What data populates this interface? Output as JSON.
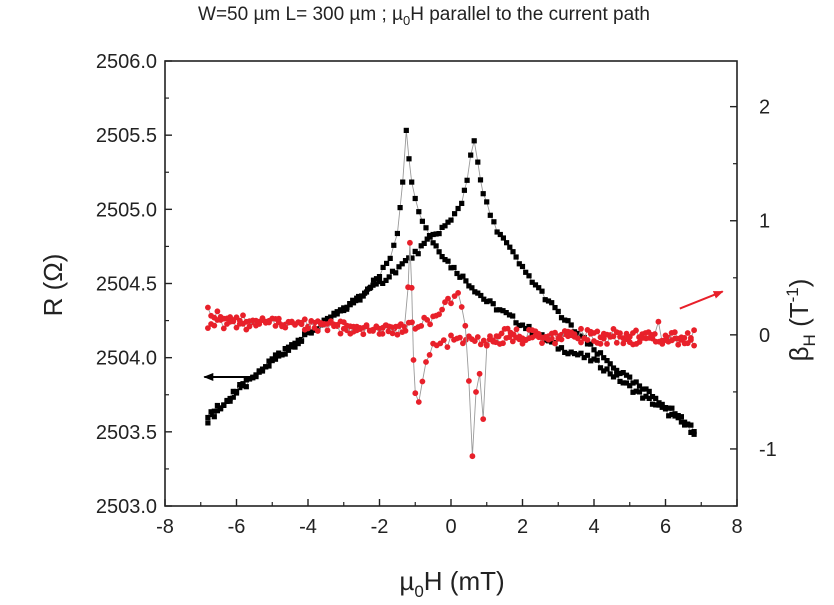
{
  "chart_data": {
    "type": "scatter",
    "title": "W=50 µm L= 300 µm ; µ₀H parallel to the current path",
    "title_parts": {
      "pre": "W=50 µm L= 300 µm ; µ",
      "sub": "0",
      "post": "H parallel to the current path"
    },
    "xlabel": {
      "pre": "µ",
      "sub": "0",
      "post": "H (mT)"
    },
    "ylabel_left": "R (Ω)",
    "ylabel_right": {
      "base": "β",
      "sub": "H",
      "unit_pre": " (T",
      "unit_sup": "-1",
      "unit_post": ")"
    },
    "xlim": [
      -8,
      8
    ],
    "ylim_left": [
      2503.0,
      2506.0
    ],
    "ylim_right": [
      -1.5,
      2.4
    ],
    "x_ticks": [
      "-8",
      "-6",
      "-4",
      "-2",
      "0",
      "2",
      "4",
      "6",
      "8"
    ],
    "y_left_ticks": [
      "2503.0",
      "2503.5",
      "2504.0",
      "2504.5",
      "2505.0",
      "2505.5",
      "2506.0"
    ],
    "y_right_ticks": [
      "-1",
      "0",
      "1",
      "2"
    ],
    "grid": false,
    "colors": {
      "R": "#000000",
      "beta": "#e8202a",
      "connector": "#9a9a9a"
    },
    "series": [
      {
        "key": "R",
        "axis": "left",
        "marker": "square",
        "sweeps": [
          [
            [
              -6.8,
              2503.58
            ],
            [
              -6.0,
              2503.76
            ],
            [
              -5.0,
              2503.97
            ],
            [
              -4.0,
              2504.16
            ],
            [
              -3.0,
              2504.32
            ],
            [
              -2.5,
              2504.43
            ],
            [
              -2.0,
              2504.55
            ],
            [
              -1.7,
              2504.68
            ],
            [
              -1.5,
              2504.85
            ],
            [
              -1.35,
              2505.2
            ],
            [
              -1.25,
              2505.52
            ],
            [
              -1.1,
              2505.2
            ],
            [
              -0.9,
              2504.98
            ],
            [
              -0.5,
              2504.78
            ],
            [
              0.0,
              2504.62
            ],
            [
              0.5,
              2504.5
            ],
            [
              1.0,
              2504.38
            ],
            [
              2.0,
              2504.22
            ],
            [
              3.0,
              2504.07
            ],
            [
              4.0,
              2503.98
            ],
            [
              5.0,
              2503.8
            ],
            [
              6.0,
              2503.64
            ],
            [
              6.8,
              2503.5
            ]
          ],
          [
            [
              -6.8,
              2503.6
            ],
            [
              -6.0,
              2503.78
            ],
            [
              -5.0,
              2503.99
            ],
            [
              -4.0,
              2504.16
            ],
            [
              -3.0,
              2504.33
            ],
            [
              -2.0,
              2504.5
            ],
            [
              -1.0,
              2504.7
            ],
            [
              -0.5,
              2504.82
            ],
            [
              0.0,
              2504.92
            ],
            [
              0.3,
              2505.05
            ],
            [
              0.45,
              2505.2
            ],
            [
              0.55,
              2505.38
            ],
            [
              0.65,
              2505.47
            ],
            [
              0.75,
              2505.3
            ],
            [
              0.9,
              2505.1
            ],
            [
              1.2,
              2504.9
            ],
            [
              2.0,
              2504.6
            ],
            [
              3.0,
              2504.3
            ],
            [
              4.0,
              2504.05
            ],
            [
              5.0,
              2503.85
            ],
            [
              6.0,
              2503.68
            ],
            [
              6.8,
              2503.52
            ]
          ]
        ]
      },
      {
        "key": "beta",
        "axis": "right",
        "marker": "circle",
        "sweeps": [
          [
            [
              -6.8,
              0.2
            ],
            [
              -6.0,
              0.15
            ],
            [
              -5.0,
              0.12
            ],
            [
              -4.0,
              0.1
            ],
            [
              -3.0,
              0.08
            ],
            [
              -2.0,
              0.05
            ],
            [
              -1.5,
              0.02
            ],
            [
              -1.3,
              0.1
            ],
            [
              -1.2,
              0.45
            ],
            [
              -1.15,
              0.85
            ],
            [
              -1.1,
              0.4
            ],
            [
              -1.05,
              -0.2
            ],
            [
              -1.0,
              -0.55
            ],
            [
              -0.9,
              -0.6
            ],
            [
              -0.7,
              -0.25
            ],
            [
              -0.5,
              -0.1
            ],
            [
              -0.2,
              -0.08
            ],
            [
              0.0,
              -0.05
            ],
            [
              0.5,
              -0.05
            ],
            [
              1.0,
              -0.05
            ],
            [
              2.0,
              -0.05
            ],
            [
              3.0,
              -0.04
            ],
            [
              4.0,
              -0.03
            ],
            [
              5.0,
              -0.05
            ],
            [
              6.0,
              -0.05
            ],
            [
              6.8,
              -0.05
            ]
          ],
          [
            [
              -6.8,
              0.1
            ],
            [
              -6.0,
              0.08
            ],
            [
              -5.0,
              0.1
            ],
            [
              -4.0,
              0.08
            ],
            [
              -3.0,
              0.05
            ],
            [
              -2.0,
              0.05
            ],
            [
              -1.0,
              0.07
            ],
            [
              -0.5,
              0.15
            ],
            [
              0.0,
              0.3
            ],
            [
              0.2,
              0.35
            ],
            [
              0.4,
              0.1
            ],
            [
              0.5,
              -0.4
            ],
            [
              0.6,
              -1.1
            ],
            [
              0.7,
              -0.5
            ],
            [
              0.8,
              -0.3
            ],
            [
              0.9,
              -0.7
            ],
            [
              1.0,
              -0.1
            ],
            [
              1.5,
              0.02
            ],
            [
              2.0,
              0.0
            ],
            [
              3.0,
              0.0
            ],
            [
              4.0,
              0.02
            ],
            [
              5.0,
              0.0
            ],
            [
              5.7,
              0.05
            ],
            [
              5.8,
              0.08
            ],
            [
              5.9,
              -0.03
            ],
            [
              6.8,
              0.02
            ]
          ]
        ]
      }
    ],
    "annotations": [
      {
        "type": "arrow",
        "color": "#000000",
        "direction": "left",
        "from": [
          -5.4,
          2503.87
        ],
        "to": [
          -6.9,
          2503.87
        ],
        "axis": "left"
      },
      {
        "type": "arrow",
        "color": "#e8202a",
        "direction": "right",
        "from": [
          6.4,
          0.23
        ],
        "to": [
          7.6,
          0.38
        ],
        "axis": "right"
      }
    ]
  }
}
